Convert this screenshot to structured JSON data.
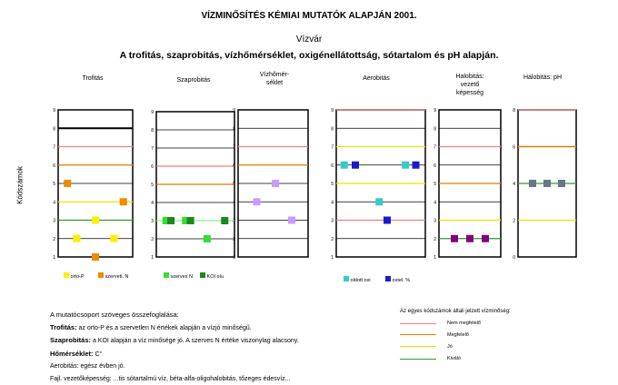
{
  "header": {
    "title": "VÍZMINŐSÍTÉS KÉMIAI MUTATÓK ALAPJÁN 2001.",
    "waterbody": "Vízvár",
    "description": "A trofitás, szaprobitás, vízhőmérséklet, oxigénellátottság, sótartalom és pH alapján."
  },
  "y_axis_label": "Kódszámok",
  "class_colors": {
    "nem_megfelelo": "#f08080",
    "megfelelo": "#e07b00",
    "jo": "#f0e000",
    "kivalo": "#2d9a2d",
    "border": "#000000"
  },
  "chart_data": [
    {
      "type": "scatter",
      "title": "Trofitás",
      "ylim": [
        1,
        9
      ],
      "yticks": [
        "1",
        "2",
        "3",
        "4",
        "5",
        "6",
        "7",
        "8",
        "9"
      ],
      "hlines": [
        {
          "y": 2,
          "color": "#000000",
          "w": 0.7
        },
        {
          "y": 3,
          "color": "#2d9a2d",
          "w": 1.2
        },
        {
          "y": 4,
          "color": "#f0e000",
          "w": 1.2
        },
        {
          "y": 5,
          "color": "#000000",
          "w": 0.7
        },
        {
          "y": 6,
          "color": "#e07b00",
          "w": 1.2
        },
        {
          "y": 7,
          "color": "#f08080",
          "w": 1.2
        },
        {
          "y": 8,
          "color": "#000000",
          "w": 2
        }
      ],
      "series": [
        {
          "name": "orto-P",
          "color": "#ffee00",
          "points": [
            {
              "x": 1,
              "y": 2
            },
            {
              "x": 2,
              "y": 3
            },
            {
              "x": 3,
              "y": 2
            }
          ]
        },
        {
          "name": "szervetl. N",
          "color": "#f08a00",
          "points": [
            {
              "x": 0.5,
              "y": 5
            },
            {
              "x": 2,
              "y": 1
            },
            {
              "x": 3.5,
              "y": 4
            }
          ]
        }
      ]
    },
    {
      "type": "scatter",
      "title": "Szaprobitás",
      "ylim": [
        1,
        9
      ],
      "yticks": [
        "1",
        "2",
        "3",
        "4",
        "5",
        "6",
        "7",
        "8",
        "9"
      ],
      "hlines": [
        {
          "y": 2,
          "color": "#000000",
          "w": 0.7
        },
        {
          "y": 3,
          "color": "#90ee90",
          "w": 1.2
        },
        {
          "y": 4,
          "color": "#000000",
          "w": 0.7
        },
        {
          "y": 5,
          "color": "#e07b00",
          "w": 1.2
        },
        {
          "y": 6,
          "color": "#f08080",
          "w": 1.2
        },
        {
          "y": 7,
          "color": "#000000",
          "w": 0.7
        },
        {
          "y": 8,
          "color": "#000000",
          "w": 0.7
        }
      ],
      "series": [
        {
          "name": "szerves N",
          "color": "#33dd33",
          "points": [
            {
              "x": 0.5,
              "y": 3
            },
            {
              "x": 1.5,
              "y": 3
            },
            {
              "x": 2.6,
              "y": 2
            }
          ]
        },
        {
          "name": "KOI olu",
          "color": "#1a8a1a",
          "points": [
            {
              "x": 0.75,
              "y": 3
            },
            {
              "x": 1.75,
              "y": 3
            },
            {
              "x": 3.5,
              "y": 3
            }
          ]
        }
      ]
    },
    {
      "type": "scatter",
      "title": "Vízhőmér-\nséklet",
      "ylim": [
        1,
        9
      ],
      "yticks": [
        "1",
        "2",
        "3",
        "4",
        "5",
        "6",
        "7",
        "8",
        "9"
      ],
      "hlines": [
        {
          "y": 2,
          "color": "#000000",
          "w": 0.7
        },
        {
          "y": 3,
          "color": "#000000",
          "w": 0.7
        },
        {
          "y": 4,
          "color": "#000000",
          "w": 0.7
        },
        {
          "y": 5,
          "color": "#000000",
          "w": 0.7
        },
        {
          "y": 6,
          "color": "#e07b00",
          "w": 1.2
        },
        {
          "y": 7,
          "color": "#f08080",
          "w": 1.2
        },
        {
          "y": 8,
          "color": "#000000",
          "w": 0.7
        }
      ],
      "series": [
        {
          "name": "",
          "color": "#cc99ff",
          "points": [
            {
              "x": 0.8,
              "y": 4
            },
            {
              "x": 1.6,
              "y": 5
            },
            {
              "x": 2.3,
              "y": 3
            }
          ]
        }
      ]
    },
    {
      "type": "scatter",
      "title": "Aerobitás",
      "ylim": [
        1,
        9
      ],
      "yticks": [
        "1",
        "2",
        "3",
        "4",
        "5",
        "6",
        "7",
        "8",
        "9"
      ],
      "hlines": [
        {
          "y": 2,
          "color": "#000000",
          "w": 0.7
        },
        {
          "y": 3,
          "color": "#f08080",
          "w": 1.2
        },
        {
          "y": 4,
          "color": "#000000",
          "w": 0.7
        },
        {
          "y": 5,
          "color": "#f0e000",
          "w": 1.2
        },
        {
          "y": 6,
          "color": "#000000",
          "w": 0.7
        },
        {
          "y": 7,
          "color": "#f0e000",
          "w": 1.2
        },
        {
          "y": 8,
          "color": "#000000",
          "w": 0.7
        },
        {
          "y": 9,
          "color": "#f08080",
          "w": 1.2
        }
      ],
      "series": [
        {
          "name": "oldott oxi",
          "color": "#33cccc",
          "points": [
            {
              "x": 0.5,
              "y": 6
            },
            {
              "x": 2.7,
              "y": 4
            },
            {
              "x": 4.35,
              "y": 6
            }
          ]
        },
        {
          "name": "oxtel. %",
          "color": "#1a1acc",
          "points": [
            {
              "x": 1.2,
              "y": 6
            },
            {
              "x": 3.2,
              "y": 3
            },
            {
              "x": 5,
              "y": 6
            }
          ]
        }
      ]
    },
    {
      "type": "scatter",
      "title": "Halobitás:\nvezető\nképesség",
      "ylim": [
        1,
        9
      ],
      "yticks": [
        "1",
        "2",
        "3",
        "4",
        "5",
        "6",
        "7",
        "8",
        "9"
      ],
      "hlines": [
        {
          "y": 2,
          "color": "#2d9a2d",
          "w": 1.2
        },
        {
          "y": 3,
          "color": "#f0e000",
          "w": 1.2
        },
        {
          "y": 4,
          "color": "#000000",
          "w": 0.7
        },
        {
          "y": 5,
          "color": "#e07b00",
          "w": 1.2
        },
        {
          "y": 6,
          "color": "#000000",
          "w": 0.7
        },
        {
          "y": 7,
          "color": "#f08080",
          "w": 1.2
        },
        {
          "y": 8,
          "color": "#000000",
          "w": 0.7
        }
      ],
      "series": [
        {
          "name": "",
          "color": "#800080",
          "points": [
            {
              "x": 1,
              "y": 2
            },
            {
              "x": 2,
              "y": 2
            },
            {
              "x": 3,
              "y": 2
            }
          ]
        }
      ]
    },
    {
      "type": "scatter",
      "title": "Halobitás: pH",
      "ylim": [
        0,
        8
      ],
      "yticks": [
        "0",
        "2",
        "4",
        "6",
        "8"
      ],
      "hlines": [
        {
          "y": 2,
          "color": "#f0e000",
          "w": 1.2
        },
        {
          "y": 4,
          "color": "#2d9a2d",
          "w": 1.2
        },
        {
          "y": 6,
          "color": "#e07b00",
          "w": 1.5
        },
        {
          "y": 8,
          "color": "#f08080",
          "w": 1.2
        }
      ],
      "series": [
        {
          "name": "",
          "color": "#667788",
          "points": [
            {
              "x": 1,
              "y": 4
            },
            {
              "x": 2,
              "y": 4
            },
            {
              "x": 3,
              "y": 4
            }
          ]
        }
      ]
    }
  ],
  "summary": {
    "heading": "A mutatócsoport szöveges összefoglalása:",
    "trofitas_label": "Trofitás:",
    "trofitas_text": "az orto-P és a szervetlen N értékek alapján a vízjó minőségű.",
    "szaprobitas_label": "Szaprobitás:",
    "szaprobitas_text": "a KOI alapján a víz minősége jó. A szerves N értéke viszonylag alacsony.",
    "homerseklet_label": "Hőmérséklet:",
    "homerseklet_text": "C°",
    "aerobitas_text": "Aerobitás: egész évben jó.",
    "fajl_text": "Fajl. vezetőképesség: ...tis sótartalmú víz, béta-alfa-oligohalobitás, tőzeges édesvíz..."
  },
  "legend": {
    "title": "Az egyes kódszámok általi jelzett vízminőség:",
    "items": [
      {
        "label": "Nem megfelelő",
        "color": "#f08080",
        "w": 1
      },
      {
        "label": "Megfelelő",
        "color": "#e07b00",
        "w": 1.5
      },
      {
        "label": "Jó",
        "color": "#f0e000",
        "w": 1
      },
      {
        "label": "Kiváló",
        "color": "#2d9a2d",
        "w": 1
      }
    ]
  },
  "bottom_legends": [
    {
      "label": "orto-P",
      "color": "#ffee00"
    },
    {
      "label": "szervetl. N",
      "color": "#f08a00"
    },
    {
      "label": "szerves N",
      "color": "#33dd33"
    },
    {
      "label": "KOI olu",
      "color": "#1a8a1a"
    },
    {
      "label": "oldott oxi",
      "color": "#33cccc"
    },
    {
      "label": "oxtel. %",
      "color": "#1a1acc"
    }
  ]
}
